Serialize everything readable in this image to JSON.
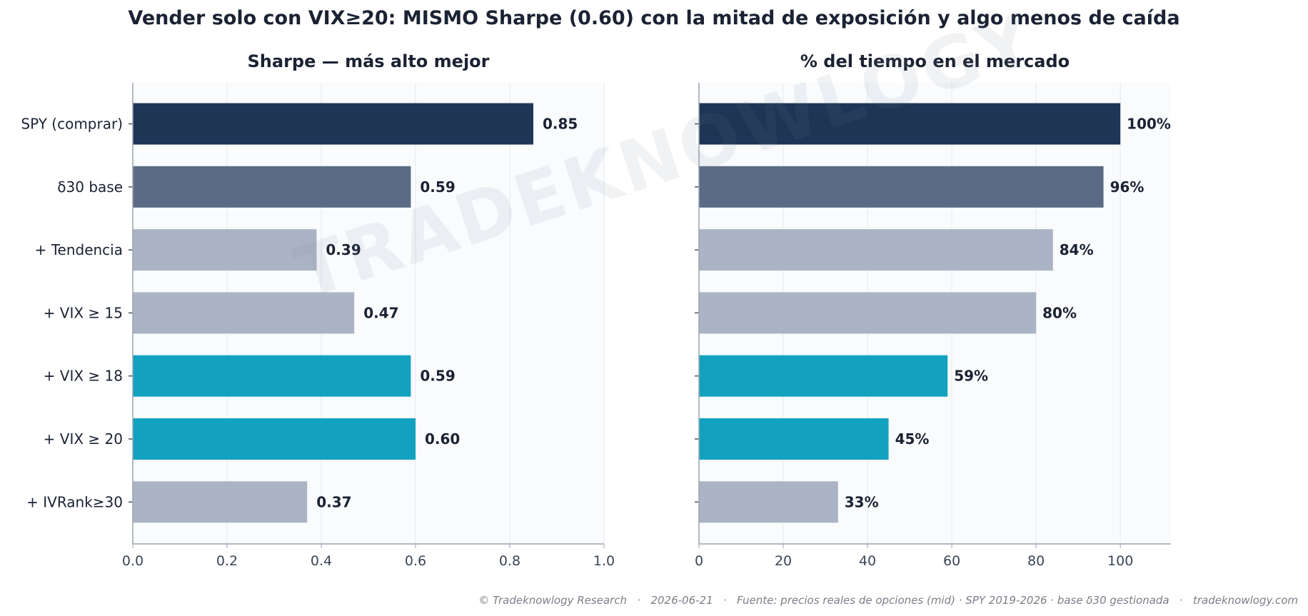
{
  "title": "Vender solo con VIX≥20: MISMO Sharpe (0.60) con la mitad de exposición y algo menos de caída",
  "footer": "© Tradeknowlogy Research   ·   2026-06-21   ·   Fuente: precios reales de opciones (mid) · SPY 2019-2026 · base δ30 gestionada   ·   tradeknowlogy.com",
  "watermark": "TRADEKNOWLOGY",
  "colors": {
    "dark": "#1e3556",
    "slate": "#5b6b85",
    "light": "#aab4c4",
    "teal": "#12a2c0"
  },
  "chart_data": [
    {
      "type": "bar",
      "orientation": "horizontal",
      "title": "Sharpe — más alto mejor",
      "categories": [
        "SPY (comprar)",
        "δ30 base",
        "+ Tendencia",
        "+ VIX ≥ 15",
        "+ VIX ≥ 18",
        "+ VIX ≥ 20",
        "+ IVRank≥30"
      ],
      "values": [
        0.85,
        0.59,
        0.39,
        0.47,
        0.59,
        0.6,
        0.37
      ],
      "value_labels": [
        "0.85",
        "0.59",
        "0.39",
        "0.47",
        "0.59",
        "0.60",
        "0.37"
      ],
      "bar_colors": [
        "#1e3556",
        "#5b6b85",
        "#aab4c4",
        "#aab4c4",
        "#12a2c0",
        "#12a2c0",
        "#aab4c4"
      ],
      "xlim": [
        0,
        1.0
      ],
      "xticks": [
        "0.0",
        "0.2",
        "0.4",
        "0.6",
        "0.8",
        "1.0"
      ],
      "grid": true
    },
    {
      "type": "bar",
      "orientation": "horizontal",
      "title": "% del tiempo en el mercado",
      "categories": [
        "SPY (comprar)",
        "δ30 base",
        "+ Tendencia",
        "+ VIX ≥ 15",
        "+ VIX ≥ 18",
        "+ VIX ≥ 20",
        "+ IVRank≥30"
      ],
      "values": [
        100,
        96,
        84,
        80,
        59,
        45,
        33
      ],
      "value_labels": [
        "100%",
        "96%",
        "84%",
        "80%",
        "59%",
        "45%",
        "33%"
      ],
      "bar_colors": [
        "#1e3556",
        "#5b6b85",
        "#aab4c4",
        "#aab4c4",
        "#12a2c0",
        "#12a2c0",
        "#aab4c4"
      ],
      "xlim": [
        0,
        112
      ],
      "xticks": [
        "0",
        "20",
        "40",
        "60",
        "80",
        "100"
      ],
      "grid": true
    }
  ]
}
